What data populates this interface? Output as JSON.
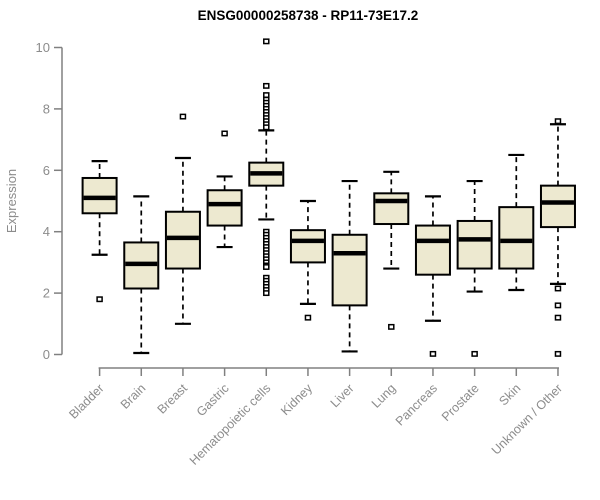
{
  "title": "ENSG00000258738 - RP11-73E17.2",
  "chart_data": {
    "type": "boxplot",
    "title": "ENSG00000258738 - RP11-73E17.2",
    "xlabel": "",
    "ylabel": "Expression",
    "ylim": [
      0,
      10
    ],
    "yticks": [
      0,
      2,
      4,
      6,
      8,
      10
    ],
    "grid": "off",
    "legend": "none",
    "background": "#ffffff",
    "box_fill": "#EDE9D0",
    "box_stroke": "#000000",
    "median_color": "#000000",
    "whisker_style": "dashed",
    "outlier_marker": "open-square",
    "axis_color": "#808080",
    "text_color": "#8c8c8c",
    "title_color": "#000000",
    "categories": [
      "Bladder",
      "Brain",
      "Breast",
      "Gastric",
      "Hematopoietic cells",
      "Kidney",
      "Liver",
      "Lung",
      "Pancreas",
      "Prostate",
      "Skin",
      "Unknown / Other"
    ],
    "boxes": [
      {
        "category": "Bladder",
        "whisker_low": 3.25,
        "q1": 4.6,
        "median": 5.1,
        "q3": 5.75,
        "whisker_high": 6.3,
        "outliers": [
          1.8
        ]
      },
      {
        "category": "Brain",
        "whisker_low": 0.05,
        "q1": 2.15,
        "median": 2.95,
        "q3": 3.65,
        "whisker_high": 5.15,
        "outliers": []
      },
      {
        "category": "Breast",
        "whisker_low": 1.0,
        "q1": 2.8,
        "median": 3.8,
        "q3": 4.65,
        "whisker_high": 6.4,
        "outliers": [
          7.75
        ]
      },
      {
        "category": "Gastric",
        "whisker_low": 3.5,
        "q1": 4.2,
        "median": 4.9,
        "q3": 5.35,
        "whisker_high": 5.8,
        "outliers": [
          7.2
        ]
      },
      {
        "category": "Hematopoietic cells",
        "whisker_low": 4.4,
        "q1": 5.5,
        "median": 5.9,
        "q3": 6.25,
        "whisker_high": 7.3,
        "outliers": [
          10.2,
          8.75,
          8.45,
          8.3,
          8.2,
          8.1,
          8.0,
          7.9,
          7.8,
          7.7,
          7.6,
          7.5,
          7.4,
          4.0,
          3.9,
          3.8,
          3.7,
          3.6,
          3.5,
          3.4,
          3.3,
          3.2,
          3.1,
          3.0,
          2.9,
          2.85,
          2.5,
          2.4,
          2.3,
          2.2,
          2.1,
          2.0
        ]
      },
      {
        "category": "Kidney",
        "whisker_low": 1.65,
        "q1": 3.0,
        "median": 3.7,
        "q3": 4.05,
        "whisker_high": 5.0,
        "outliers": [
          1.2
        ]
      },
      {
        "category": "Liver",
        "whisker_low": 0.1,
        "q1": 1.6,
        "median": 3.3,
        "q3": 3.9,
        "whisker_high": 5.65,
        "outliers": []
      },
      {
        "category": "Lung",
        "whisker_low": 2.8,
        "q1": 4.25,
        "median": 5.0,
        "q3": 5.25,
        "whisker_high": 5.95,
        "outliers": [
          0.9
        ]
      },
      {
        "category": "Pancreas",
        "whisker_low": 1.1,
        "q1": 2.6,
        "median": 3.7,
        "q3": 4.2,
        "whisker_high": 5.15,
        "outliers": [
          0.02
        ]
      },
      {
        "category": "Prostate",
        "whisker_low": 2.05,
        "q1": 2.8,
        "median": 3.75,
        "q3": 4.35,
        "whisker_high": 5.65,
        "outliers": [
          0.02
        ]
      },
      {
        "category": "Skin",
        "whisker_low": 2.1,
        "q1": 2.8,
        "median": 3.7,
        "q3": 4.8,
        "whisker_high": 6.5,
        "outliers": []
      },
      {
        "category": "Unknown / Other",
        "whisker_low": 2.3,
        "q1": 4.15,
        "median": 4.95,
        "q3": 5.5,
        "whisker_high": 7.5,
        "outliers": [
          7.6,
          2.15,
          1.6,
          1.2,
          0.02
        ]
      }
    ]
  }
}
